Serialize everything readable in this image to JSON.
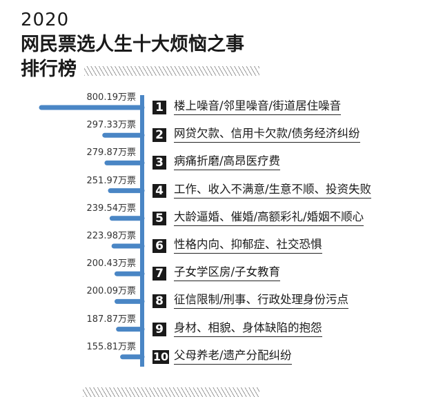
{
  "header": {
    "year": "2020",
    "title_line1": "网民票选人生十大烦恼之事",
    "title_line2": "排行榜"
  },
  "colors": {
    "bar": "#4a86c5",
    "axis": "#4a86c5",
    "rank_box": "#1a1a1a",
    "text": "#1a1a1a"
  },
  "chart_data": {
    "type": "bar",
    "title": "网民票选人生十大烦恼之事排行榜",
    "unit": "万票",
    "orientation": "horizontal-left",
    "xlim": [
      0,
      800.19
    ],
    "ranks": [
      "1",
      "2",
      "3",
      "4",
      "5",
      "6",
      "7",
      "8",
      "9",
      "10"
    ],
    "categories": [
      "楼上噪音/邻里噪音/街道居住噪音",
      "网贷欠款、信用卡欠款/债务经济纠纷",
      "病痛折磨/高昂医疗费",
      "工作、收入不满意/生意不顺、投资失败",
      "大龄逼婚、催婚/高额彩礼/婚姻不顺心",
      "性格内向、抑郁症、社交恐惧",
      "子女学区房/子女教育",
      "征信限制/刑事、行政处理身份污点",
      "身材、相貌、身体缺陷的抱怨",
      "父母养老/遗产分配纠纷"
    ],
    "values": [
      800.19,
      297.33,
      279.87,
      251.97,
      239.54,
      223.98,
      200.43,
      200.09,
      187.87,
      155.81
    ],
    "value_labels": [
      "800.19",
      "297.33",
      "279.87",
      "251.97",
      "239.54",
      "223.98",
      "200.43",
      "200.09",
      "187.87",
      "155.81"
    ]
  }
}
